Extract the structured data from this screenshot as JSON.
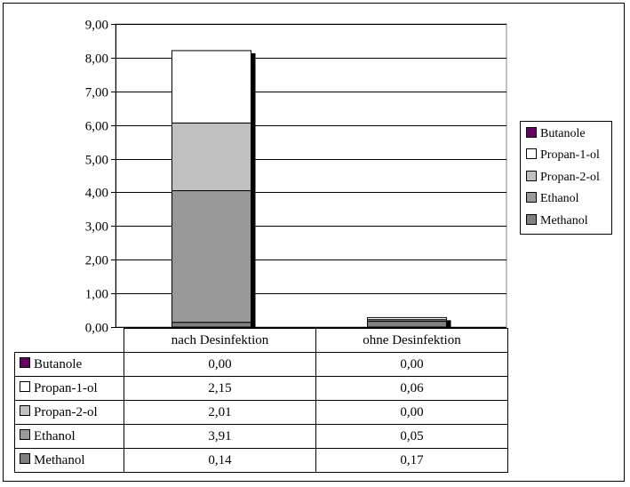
{
  "chart_data": {
    "type": "bar",
    "stacked": true,
    "categories": [
      "nach Desinfektion",
      "ohne Desinfektion"
    ],
    "series": [
      {
        "name": "Methanol",
        "values": [
          0.14,
          0.17
        ],
        "color": "#808080"
      },
      {
        "name": "Ethanol",
        "values": [
          3.91,
          0.05
        ],
        "color": "#999999"
      },
      {
        "name": "Propan-2-ol",
        "values": [
          2.01,
          0.0
        ],
        "color": "#c0c0c0"
      },
      {
        "name": "Propan-1-ol",
        "values": [
          2.15,
          0.06
        ],
        "color": "#ffffff"
      },
      {
        "name": "Butanole",
        "values": [
          0.0,
          0.0
        ],
        "color": "#660066"
      }
    ],
    "ylim": [
      0,
      9
    ],
    "yticks": [
      "0,00",
      "1,00",
      "2,00",
      "3,00",
      "4,00",
      "5,00",
      "6,00",
      "7,00",
      "8,00",
      "9,00"
    ],
    "legend_position": "right",
    "grid": true,
    "data_table": true
  },
  "legend": [
    "Butanole",
    "Propan-1-ol",
    "Propan-2-ol",
    "Ethanol",
    "Methanol"
  ],
  "table": {
    "columns": [
      "nach Desinfektion",
      "ohne Desinfektion"
    ],
    "rows": [
      {
        "label": "Butanole",
        "values": [
          "0,00",
          "0,00"
        ],
        "color": "#660066"
      },
      {
        "label": "Propan-1-ol",
        "values": [
          "2,15",
          "0,06"
        ],
        "color": "#ffffff"
      },
      {
        "label": "Propan-2-ol",
        "values": [
          "2,01",
          "0,00"
        ],
        "color": "#c0c0c0"
      },
      {
        "label": "Ethanol",
        "values": [
          "3,91",
          "0,05"
        ],
        "color": "#999999"
      },
      {
        "label": "Methanol",
        "values": [
          "0,14",
          "0,17"
        ],
        "color": "#808080"
      }
    ]
  }
}
